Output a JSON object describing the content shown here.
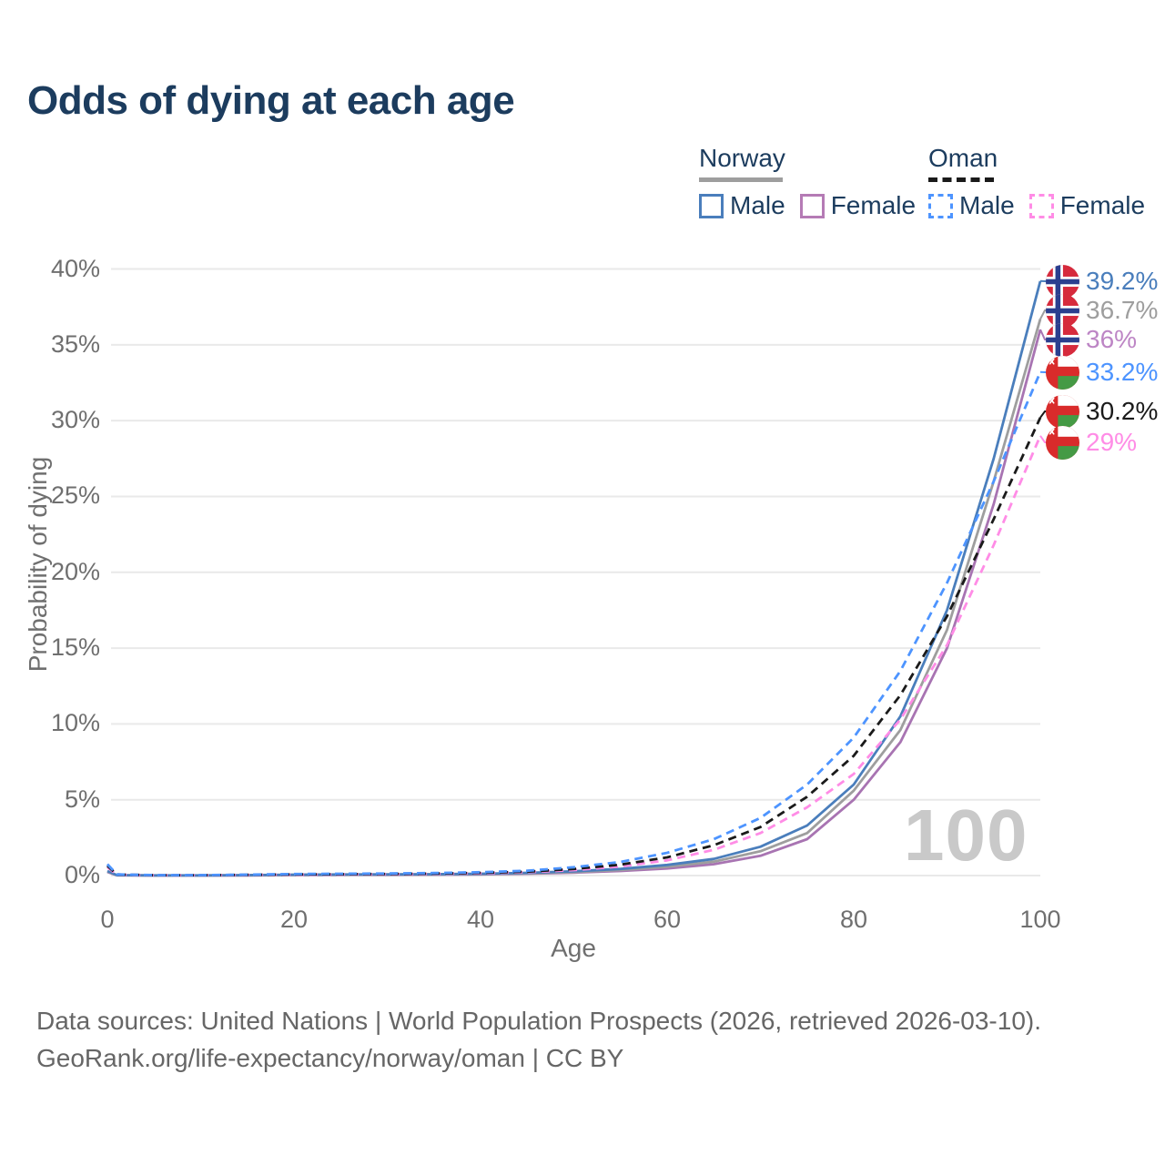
{
  "title": "Odds of dying at each age",
  "legend": {
    "groups": [
      {
        "country": "Norway",
        "line_style": "solid",
        "underline_color": "#9e9e9e",
        "items": [
          {
            "label": "Male",
            "color": "#4a7ebc"
          },
          {
            "label": "Female",
            "color": "#b57bb5"
          }
        ]
      },
      {
        "country": "Oman",
        "line_style": "dashed",
        "underline_color": "#1a1a1a",
        "items": [
          {
            "label": "Male",
            "color": "#4d94ff"
          },
          {
            "label": "Female",
            "color": "#ff8ce6"
          }
        ]
      }
    ]
  },
  "chart_data": {
    "type": "line",
    "title": "Odds of dying at each age",
    "xlabel": "Age",
    "ylabel": "Probability of dying",
    "xlim": [
      0,
      100
    ],
    "ylim": [
      0,
      40
    ],
    "x_ticks": [
      0,
      20,
      40,
      60,
      80,
      100
    ],
    "y_ticks": [
      {
        "value": 0,
        "label": "0%"
      },
      {
        "value": 5,
        "label": "5%"
      },
      {
        "value": 10,
        "label": "10%"
      },
      {
        "value": 15,
        "label": "15%"
      },
      {
        "value": 20,
        "label": "20%"
      },
      {
        "value": 25,
        "label": "25%"
      },
      {
        "value": 30,
        "label": "30%"
      },
      {
        "value": 35,
        "label": "35%"
      },
      {
        "value": 40,
        "label": "40%"
      }
    ],
    "grid": "horizontal",
    "legend_position": "top-right",
    "watermark": "100",
    "ages": [
      0,
      1,
      5,
      10,
      15,
      20,
      25,
      30,
      35,
      40,
      45,
      50,
      55,
      60,
      65,
      70,
      75,
      80,
      85,
      90,
      95,
      100
    ],
    "series": [
      {
        "name": "Norway Female",
        "country": "Norway",
        "sex": "Female",
        "dash": false,
        "color": "#a874b2",
        "label_color": "#bd85c5",
        "flag": "norway",
        "end_label": "36%",
        "values": [
          0.24,
          0.02,
          0.008,
          0.008,
          0.015,
          0.03,
          0.04,
          0.05,
          0.06,
          0.08,
          0.12,
          0.19,
          0.3,
          0.47,
          0.75,
          1.3,
          2.4,
          5.0,
          8.8,
          15.0,
          24.5,
          36.0
        ]
      },
      {
        "name": "Norway Both sexes",
        "country": "Norway",
        "sex": "Both",
        "dash": false,
        "color": "#9e9e9e",
        "label_color": "#9e9e9e",
        "flag": "norway",
        "end_label": "36.7%",
        "values": [
          0.27,
          0.025,
          0.009,
          0.009,
          0.02,
          0.045,
          0.055,
          0.065,
          0.075,
          0.1,
          0.15,
          0.23,
          0.37,
          0.58,
          0.92,
          1.6,
          2.8,
          5.6,
          9.6,
          16.2,
          26.0,
          36.7
        ]
      },
      {
        "name": "Norway Male",
        "country": "Norway",
        "sex": "Male",
        "dash": false,
        "color": "#4a7ebc",
        "label_color": "#4a7ebc",
        "flag": "norway",
        "end_label": "39.2%",
        "values": [
          0.3,
          0.03,
          0.01,
          0.01,
          0.03,
          0.06,
          0.07,
          0.08,
          0.09,
          0.12,
          0.18,
          0.28,
          0.44,
          0.7,
          1.1,
          1.9,
          3.3,
          6.0,
          10.5,
          17.5,
          27.5,
          39.2
        ]
      },
      {
        "name": "Oman Female",
        "country": "Oman",
        "sex": "Female",
        "dash": true,
        "color": "#ff8ce6",
        "label_color": "#ff8ce6",
        "flag": "oman",
        "end_label": "29%",
        "values": [
          0.55,
          0.06,
          0.02,
          0.02,
          0.04,
          0.06,
          0.07,
          0.09,
          0.11,
          0.15,
          0.22,
          0.36,
          0.6,
          1.0,
          1.7,
          2.8,
          4.5,
          6.7,
          10.3,
          15.2,
          21.8,
          29.0
        ]
      },
      {
        "name": "Oman Both sexes",
        "country": "Oman",
        "sex": "Both",
        "dash": true,
        "color": "#1a1a1a",
        "label_color": "#1a1a1a",
        "flag": "oman",
        "end_label": "30.2%",
        "values": [
          0.65,
          0.07,
          0.025,
          0.025,
          0.05,
          0.08,
          0.09,
          0.11,
          0.13,
          0.18,
          0.26,
          0.44,
          0.72,
          1.2,
          2.0,
          3.2,
          5.2,
          7.9,
          11.9,
          17.1,
          23.5,
          30.2
        ]
      },
      {
        "name": "Oman Male",
        "country": "Oman",
        "sex": "Male",
        "dash": true,
        "color": "#4d94ff",
        "label_color": "#4d94ff",
        "flag": "oman",
        "end_label": "33.2%",
        "values": [
          0.75,
          0.08,
          0.03,
          0.03,
          0.06,
          0.1,
          0.12,
          0.14,
          0.17,
          0.22,
          0.32,
          0.55,
          0.9,
          1.5,
          2.4,
          3.8,
          6.0,
          9.1,
          13.5,
          19.3,
          26.0,
          33.2
        ]
      }
    ]
  },
  "footer": {
    "line1": "Data sources: United Nations | World Population Prospects (2026, retrieved 2026-03-10).",
    "line2": "GeoRank.org/life-expectancy/norway/oman | CC BY"
  },
  "colors": {
    "title_text": "#1c3c5e",
    "axis_text": "#6f6f6f",
    "gridline": "#e9e9e9",
    "watermark": "#c9c9c9",
    "norway_flag_red": "#d62a3c",
    "norway_flag_blue": "#2b3f8f",
    "oman_flag_red": "#d92b2b",
    "oman_flag_green": "#459a45"
  }
}
